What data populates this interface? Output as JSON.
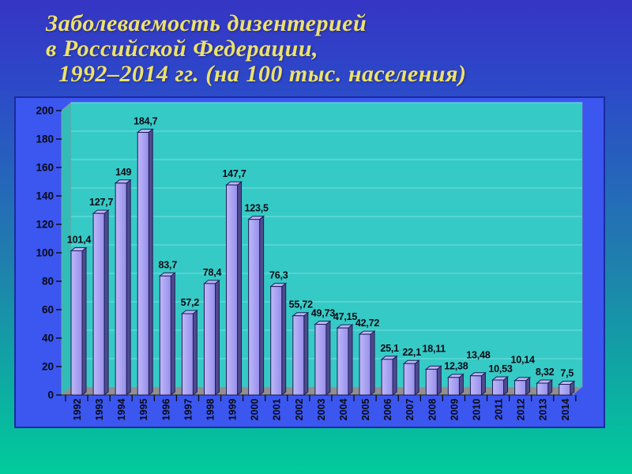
{
  "slide": {
    "title_lines": [
      "Заболеваемость дизентерией",
      "в Российской Федерации,",
      "1992–2014 гг. (на 100 тыс. населения)"
    ],
    "title_color": "#EDE26B"
  },
  "chart_data": {
    "type": "bar",
    "title": "Заболеваемость дизентерией в Российской Федерации, 1992–2014 гг. (на 100 тыс. населения)",
    "categories": [
      "1992",
      "1993",
      "1994",
      "1995",
      "1996",
      "1997",
      "1998",
      "1999",
      "2000",
      "2001",
      "2002",
      "2003",
      "2004",
      "2005",
      "2006",
      "2007",
      "2008",
      "2009",
      "2010",
      "2011",
      "2012",
      "2013",
      "2014"
    ],
    "values": [
      101.4,
      127.7,
      149,
      184.7,
      83.7,
      57.2,
      78.4,
      147.7,
      123.5,
      76.3,
      55.72,
      49.73,
      47.15,
      42.72,
      25.1,
      22.1,
      18.11,
      12.38,
      13.48,
      10.53,
      10.14,
      8.32,
      7.5
    ],
    "value_labels": [
      "101,4",
      "127,7",
      "149",
      "184,7",
      "83,7",
      "57,2",
      "78,4",
      "147,7",
      "123,5",
      "76,3",
      "55,72",
      "49,73",
      "47,15",
      "42,72",
      "25,1",
      "22,1",
      "18,11",
      "12,38",
      "13,48",
      "10,53",
      "10,14",
      "8,32",
      "7,5"
    ],
    "label_dy": [
      0,
      0,
      0,
      0,
      0,
      0,
      0,
      0,
      0,
      0,
      0,
      0,
      0,
      0,
      0,
      0,
      -12,
      0,
      -12,
      0,
      -12,
      0,
      0
    ],
    "y_ticks": [
      0,
      20,
      40,
      60,
      80,
      100,
      120,
      140,
      160,
      180,
      200
    ],
    "ylim": [
      0,
      200
    ],
    "xlabel": "",
    "ylabel": "",
    "grid": true,
    "legend": "none",
    "colors": {
      "panel_bg": "#3B57F0",
      "panel_border": "#1B2AA0",
      "plot_bg": "#36CAC6",
      "gridline": "#66DCD8",
      "side_wall": "#31BCB9",
      "wall_edge": "#8D9A9A",
      "floor": "#909094",
      "floor_edge": "#3F3F46",
      "bar_front_light": "#BEB8F8",
      "bar_front_dark": "#978FEC",
      "bar_top": "#BCB6F6",
      "bar_side": "#4D4B8C",
      "bar_outline": "#1E1E58",
      "text": "#0A0A14"
    }
  }
}
